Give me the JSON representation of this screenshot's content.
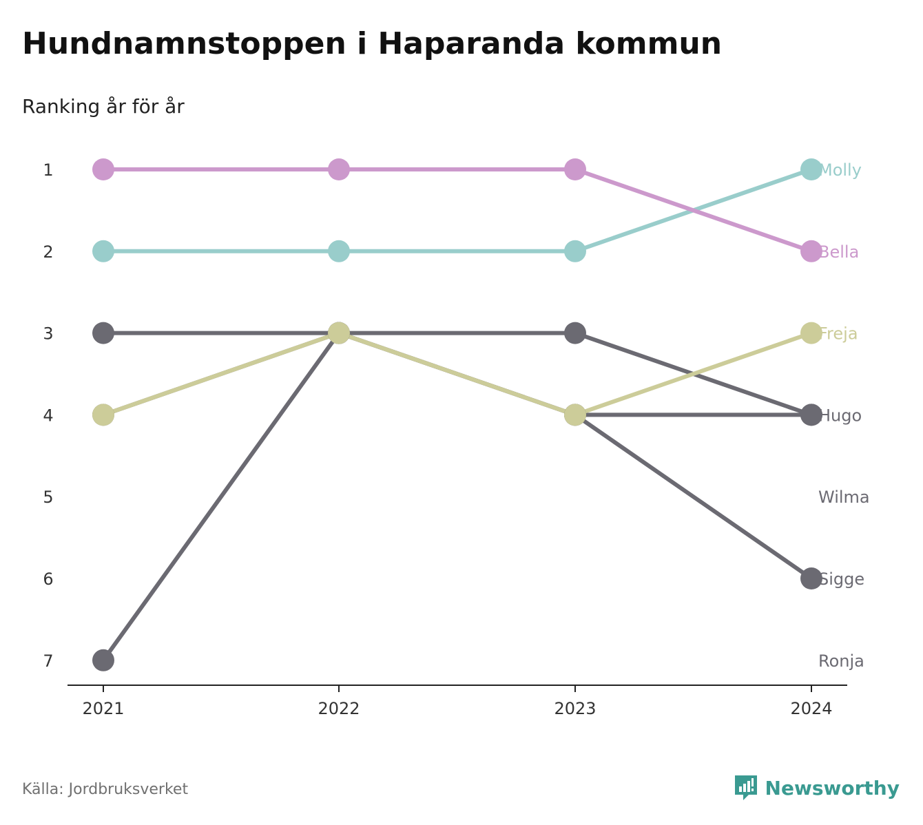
{
  "header": {
    "title": "Hundnamnstoppen i Haparanda kommun",
    "subtitle": "Ranking år för år"
  },
  "footer": {
    "source": "Källa: Jordbruksverket",
    "brand": "Newsworthy",
    "brand_icon": "newsworthy-logo-icon"
  },
  "colors": {
    "molly": "#99cdcb",
    "bella": "#cc99cc",
    "freja": "#cccc99",
    "gray": "#6b6a72",
    "brand": "#3a9a91"
  },
  "chart_data": {
    "type": "line",
    "title": "Hundnamnstoppen i Haparanda kommun",
    "subtitle": "Ranking år för år",
    "x": [
      "2021",
      "2022",
      "2023",
      "2024"
    ],
    "y_ticks": [
      1,
      2,
      3,
      4,
      5,
      6,
      7
    ],
    "ylim": [
      1,
      7
    ],
    "y_inverted": true,
    "grid": false,
    "legend": "end-labels-right",
    "series": [
      {
        "name": "Hugo",
        "ranks": [
          3,
          3,
          3,
          4
        ],
        "color": "#6b6a72"
      },
      {
        "name": "Wilma",
        "ranks": [
          4,
          3,
          4,
          4
        ],
        "color": "#6b6a72"
      },
      {
        "name": "Sigge",
        "ranks": [
          7,
          3,
          4,
          6
        ],
        "color": "#6b6a72"
      },
      {
        "name": "Ronja",
        "ranks": [
          null,
          null,
          null,
          null
        ],
        "color": "#6b6a72"
      },
      {
        "name": "Freja",
        "ranks": [
          4,
          3,
          4,
          3
        ],
        "color": "#cccc99"
      },
      {
        "name": "Molly",
        "ranks": [
          2,
          2,
          2,
          1
        ],
        "color": "#99cdcb"
      },
      {
        "name": "Bella",
        "ranks": [
          1,
          1,
          1,
          2
        ],
        "color": "#cc99cc"
      }
    ],
    "end_labels": [
      {
        "name": "Molly",
        "rank": 1,
        "color": "#99cdcb"
      },
      {
        "name": "Bella",
        "rank": 2,
        "color": "#cc99cc"
      },
      {
        "name": "Freja",
        "rank": 3,
        "color": "#cccc99"
      },
      {
        "name": "Hugo",
        "rank": 4,
        "color": "#6b6a72"
      },
      {
        "name": "Wilma",
        "rank": 5,
        "color": "#6b6a72"
      },
      {
        "name": "Sigge",
        "rank": 6,
        "color": "#6b6a72"
      },
      {
        "name": "Ronja",
        "rank": 7,
        "color": "#6b6a72"
      }
    ]
  }
}
